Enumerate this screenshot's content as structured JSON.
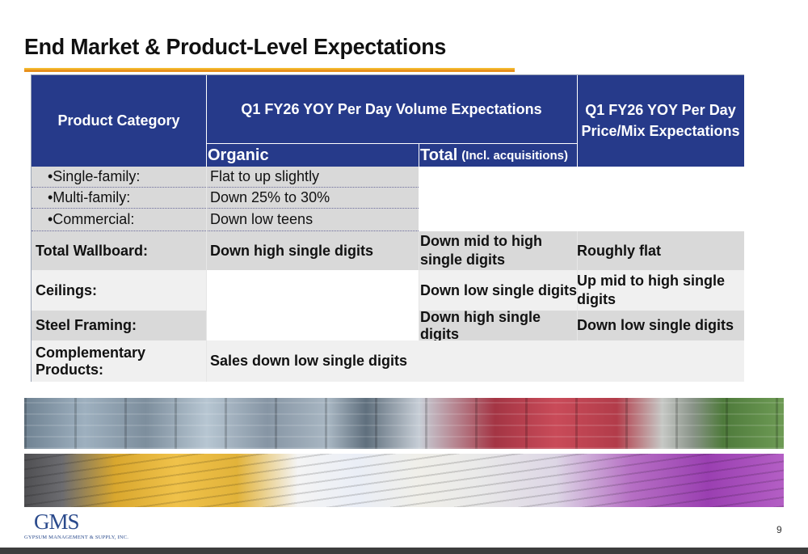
{
  "title": "End Market & Product-Level Expectations",
  "table": {
    "headers": {
      "product_category": "Product Category",
      "volume": "Q1 FY26 YOY Per Day Volume Expectations",
      "price_mix": "Q1 FY26 YOY Per Day Price/Mix Expectations",
      "organic": "Organic",
      "total": "Total",
      "total_note": "(Incl. acquisitions)"
    },
    "rows": [
      {
        "category": "•Single-family:",
        "organic": "Flat to up slightly",
        "total": "",
        "price_mix": ""
      },
      {
        "category": "•Multi-family:",
        "organic": "Down 25% to 30%",
        "total": "",
        "price_mix": ""
      },
      {
        "category": "•Commercial:",
        "organic": "Down low teens",
        "total": "",
        "price_mix": ""
      },
      {
        "category": "Total Wallboard:",
        "organic": "Down high single digits",
        "total": "Down mid to high single digits",
        "price_mix": "Roughly flat"
      },
      {
        "category": "Ceilings:",
        "organic": "",
        "total": "Down low single digits",
        "price_mix": "Up mid to high single digits"
      },
      {
        "category": "Steel Framing:",
        "organic": "",
        "total": "Down high single digits",
        "price_mix": "Down low single digits"
      },
      {
        "category": "Complementary Products:",
        "organic": "Sales down low single digits",
        "total": "",
        "price_mix": ""
      }
    ]
  },
  "logo": {
    "mark": "GMS",
    "subtitle": "GYPSUM MANAGEMENT & SUPPLY, INC."
  },
  "page_number": "9",
  "colors": {
    "header_bg": "#263a8a",
    "title_rule": "#e8901c",
    "row_gray": "#d9d9d9",
    "row_light": "#f0f0f0"
  }
}
